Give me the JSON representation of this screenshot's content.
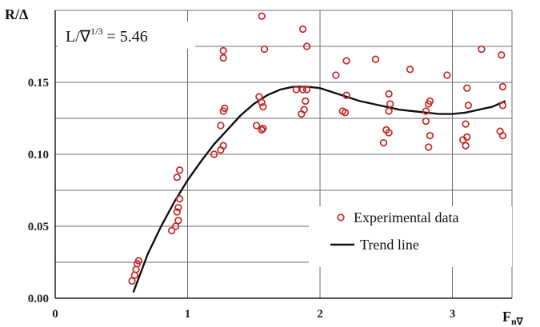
{
  "chart_data": {
    "type": "scatter",
    "xlabel": "F",
    "xlabel_subscript": "n∇",
    "ylabel": "R/Δ",
    "annotation": {
      "left": "L/∇",
      "exponent": "1/3",
      "right": " = 5.46"
    },
    "xlim": [
      0,
      3.45
    ],
    "ylim": [
      0,
      0.2
    ],
    "x_ticks": [
      {
        "value": 0,
        "label": "0"
      },
      {
        "value": 1,
        "label": "1"
      },
      {
        "value": 2,
        "label": "2"
      },
      {
        "value": 3,
        "label": "3"
      }
    ],
    "y_ticks": [
      {
        "value": 0,
        "label": "0.00"
      },
      {
        "value": 0.05,
        "label": "0.05"
      },
      {
        "value": 0.1,
        "label": "0.10"
      },
      {
        "value": 0.15,
        "label": "0.15"
      }
    ],
    "y_gridlines": [
      0.025,
      0.05,
      0.075,
      0.1,
      0.125,
      0.15,
      0.175
    ],
    "grid": true,
    "legend_position": "bottom-right",
    "series": [
      {
        "name": "Experimental data",
        "kind": "scatter",
        "color": "#c62828",
        "marker": "open-circle",
        "points": [
          [
            0.58,
            0.012
          ],
          [
            0.6,
            0.016
          ],
          [
            0.61,
            0.02
          ],
          [
            0.62,
            0.024
          ],
          [
            0.63,
            0.026
          ],
          [
            0.88,
            0.047
          ],
          [
            0.91,
            0.05
          ],
          [
            0.92,
            0.06
          ],
          [
            0.93,
            0.063
          ],
          [
            0.94,
            0.069
          ],
          [
            0.93,
            0.054
          ],
          [
            0.92,
            0.084
          ],
          [
            0.94,
            0.089
          ],
          [
            1.2,
            0.1
          ],
          [
            1.25,
            0.103
          ],
          [
            1.27,
            0.106
          ],
          [
            1.25,
            0.12
          ],
          [
            1.27,
            0.13
          ],
          [
            1.28,
            0.132
          ],
          [
            1.27,
            0.167
          ],
          [
            1.27,
            0.172
          ],
          [
            1.52,
            0.12
          ],
          [
            1.54,
            0.14
          ],
          [
            1.56,
            0.117
          ],
          [
            1.57,
            0.118
          ],
          [
            1.57,
            0.133
          ],
          [
            1.56,
            0.136
          ],
          [
            1.56,
            0.196
          ],
          [
            1.58,
            0.173
          ],
          [
            1.82,
            0.145
          ],
          [
            1.86,
            0.128
          ],
          [
            1.87,
            0.145
          ],
          [
            1.88,
            0.131
          ],
          [
            1.89,
            0.137
          ],
          [
            1.9,
            0.145
          ],
          [
            1.87,
            0.187
          ],
          [
            1.9,
            0.175
          ],
          [
            2.12,
            0.155
          ],
          [
            2.17,
            0.13
          ],
          [
            2.19,
            0.129
          ],
          [
            2.2,
            0.141
          ],
          [
            2.2,
            0.165
          ],
          [
            2.42,
            0.166
          ],
          [
            2.48,
            0.108
          ],
          [
            2.5,
            0.117
          ],
          [
            2.52,
            0.115
          ],
          [
            2.52,
            0.13
          ],
          [
            2.53,
            0.135
          ],
          [
            2.52,
            0.142
          ],
          [
            2.68,
            0.159
          ],
          [
            2.8,
            0.123
          ],
          [
            2.8,
            0.13
          ],
          [
            2.82,
            0.105
          ],
          [
            2.83,
            0.113
          ],
          [
            2.82,
            0.135
          ],
          [
            2.83,
            0.137
          ],
          [
            2.96,
            0.155
          ],
          [
            3.08,
            0.11
          ],
          [
            3.1,
            0.106
          ],
          [
            3.11,
            0.112
          ],
          [
            3.1,
            0.121
          ],
          [
            3.12,
            0.134
          ],
          [
            3.11,
            0.146
          ],
          [
            3.22,
            0.173
          ],
          [
            3.36,
            0.116
          ],
          [
            3.38,
            0.113
          ],
          [
            3.38,
            0.134
          ],
          [
            3.38,
            0.147
          ],
          [
            3.37,
            0.169
          ]
        ]
      },
      {
        "name": "Trend line",
        "kind": "line",
        "color": "#111111",
        "points": [
          [
            0.59,
            0.004
          ],
          [
            0.7,
            0.031
          ],
          [
            0.8,
            0.05
          ],
          [
            0.9,
            0.067
          ],
          [
            1.0,
            0.082
          ],
          [
            1.1,
            0.095
          ],
          [
            1.2,
            0.107
          ],
          [
            1.3,
            0.117
          ],
          [
            1.4,
            0.127
          ],
          [
            1.5,
            0.135
          ],
          [
            1.6,
            0.141
          ],
          [
            1.7,
            0.145
          ],
          [
            1.8,
            0.147
          ],
          [
            1.9,
            0.147
          ],
          [
            2.0,
            0.146
          ],
          [
            2.1,
            0.143
          ],
          [
            2.2,
            0.14
          ],
          [
            2.3,
            0.137
          ],
          [
            2.4,
            0.135
          ],
          [
            2.5,
            0.133
          ],
          [
            2.6,
            0.131
          ],
          [
            2.7,
            0.13
          ],
          [
            2.8,
            0.129
          ],
          [
            2.9,
            0.128
          ],
          [
            3.0,
            0.128
          ],
          [
            3.1,
            0.129
          ],
          [
            3.2,
            0.131
          ],
          [
            3.3,
            0.133
          ],
          [
            3.4,
            0.137
          ]
        ]
      }
    ]
  }
}
